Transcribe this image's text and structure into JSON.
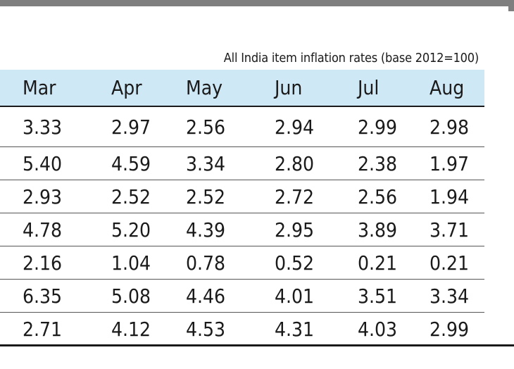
{
  "caption": "All India item inflation rates (base 2012=100)",
  "table": {
    "columns": [
      "Mar",
      "Apr",
      "May",
      "Jun",
      "Jul",
      "Aug"
    ],
    "rows": [
      [
        "3.33",
        "2.97",
        "2.56",
        "2.94",
        "2.99",
        "2.98"
      ],
      [
        "5.40",
        "4.59",
        "3.34",
        "2.80",
        "2.38",
        "1.97"
      ],
      [
        "2.93",
        "2.52",
        "2.52",
        "2.72",
        "2.56",
        "1.94"
      ],
      [
        "4.78",
        "5.20",
        "4.39",
        "2.95",
        "3.89",
        "3.71"
      ],
      [
        "2.16",
        "1.04",
        "0.78",
        "0.52",
        "0.21",
        "0.21"
      ],
      [
        "6.35",
        "5.08",
        "4.46",
        "4.01",
        "3.51",
        "3.34"
      ],
      [
        "2.71",
        "4.12",
        "4.53",
        "4.31",
        "4.03",
        "2.99"
      ]
    ]
  },
  "colors": {
    "header_background": "#cfe8f5",
    "top_bar": "#7f7f7f",
    "text": "#1a1a1a"
  }
}
